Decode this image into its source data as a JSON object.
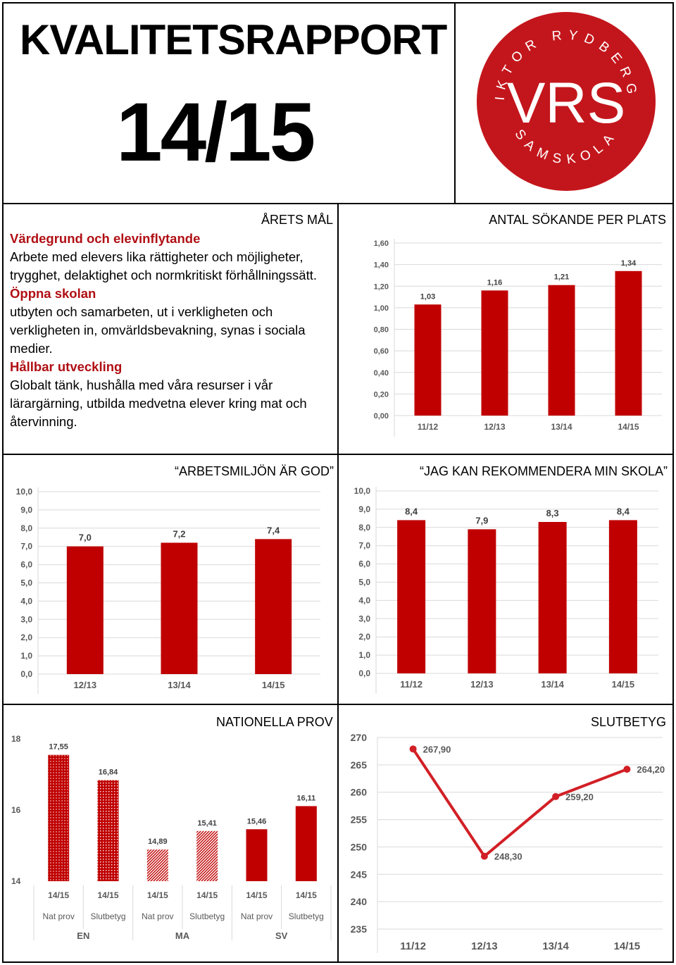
{
  "header": {
    "title": "KVALITETSRAPPORT",
    "year": "14/15",
    "logo": {
      "top_text": "VIKTOR RYDBERGS",
      "bottom_text": "SAMSKOLA",
      "monogram": "VRS",
      "color": "#c3161c"
    }
  },
  "goals": {
    "heading": "ÅRETS MÅL",
    "sections": [
      {
        "title": "Värdegrund och elevinflytande",
        "text": "Arbete med elevers lika rättigheter och möjligheter, trygghet, delaktighet och normkritiskt förhållningssätt."
      },
      {
        "title": "Öppna skolan",
        "text": "utbyten och samarbeten, ut i verkligheten och verkligheten in, omvärldsbevakning, synas i sociala medier."
      },
      {
        "title": "Hållbar utveckling",
        "text": "Globalt tänk, hushålla med våra resurser i vår lärargärning, utbilda medvetna elever kring mat och återvinning."
      }
    ]
  },
  "colors": {
    "bar": "#c00000",
    "grid": "#d9d9d9",
    "axis_text": "#595959"
  },
  "chart_data": [
    {
      "id": "sokande",
      "type": "bar",
      "title": "ANTAL SÖKANDE PER PLATS",
      "categories": [
        "11/12",
        "12/13",
        "13/14",
        "14/15"
      ],
      "values": [
        1.03,
        1.16,
        1.21,
        1.34
      ],
      "value_labels": [
        "1,03",
        "1,16",
        "1,21",
        "1,34"
      ],
      "ylim": [
        0,
        1.6
      ],
      "yticks": [
        "0,00",
        "0,20",
        "0,40",
        "0,60",
        "0,80",
        "1,00",
        "1,20",
        "1,40",
        "1,60"
      ],
      "grid": true
    },
    {
      "id": "arbetsmiljo",
      "type": "bar",
      "title": "“ARBETSMILJÖN ÄR GOD”",
      "categories": [
        "12/13",
        "13/14",
        "14/15"
      ],
      "values": [
        7.0,
        7.2,
        7.4
      ],
      "value_labels": [
        "7,0",
        "7,2",
        "7,4"
      ],
      "ylim": [
        0,
        10
      ],
      "yticks": [
        "0,0",
        "1,0",
        "2,0",
        "3,0",
        "4,0",
        "5,0",
        "6,0",
        "7,0",
        "8,0",
        "9,0",
        "10,0"
      ],
      "grid": true
    },
    {
      "id": "rekommendera",
      "type": "bar",
      "title": "“JAG KAN REKOMMENDERA MIN SKOLA”",
      "categories": [
        "11/12",
        "12/13",
        "13/14",
        "14/15"
      ],
      "values": [
        8.4,
        7.9,
        8.3,
        8.4
      ],
      "value_labels": [
        "8,4",
        "7,9",
        "8,3",
        "8,4"
      ],
      "ylim": [
        0,
        10
      ],
      "yticks": [
        "0,0",
        "1,0",
        "2,0",
        "3,0",
        "4,0",
        "5,0",
        "6,0",
        "7,0",
        "8,0",
        "9,0",
        "10,0"
      ],
      "grid": true
    },
    {
      "id": "nationella",
      "type": "bar",
      "title": "NATIONELLA PROV",
      "groups": [
        "EN",
        "MA",
        "SV"
      ],
      "bars": [
        {
          "group": "EN",
          "year": "14/15",
          "kind": "Nat prov",
          "value": 17.55,
          "label": "17,55",
          "pattern": "dots-dense"
        },
        {
          "group": "EN",
          "year": "14/15",
          "kind": "Slutbetyg",
          "value": 16.84,
          "label": "16,84",
          "pattern": "dots"
        },
        {
          "group": "MA",
          "year": "14/15",
          "kind": "Nat prov",
          "value": 14.89,
          "label": "14,89",
          "pattern": "hatch"
        },
        {
          "group": "MA",
          "year": "14/15",
          "kind": "Slutbetyg",
          "value": 15.41,
          "label": "15,41",
          "pattern": "hatch"
        },
        {
          "group": "SV",
          "year": "14/15",
          "kind": "Nat prov",
          "value": 15.46,
          "label": "15,46",
          "pattern": "solid"
        },
        {
          "group": "SV",
          "year": "14/15",
          "kind": "Slutbetyg",
          "value": 16.11,
          "label": "16,11",
          "pattern": "solid"
        }
      ],
      "ylim": [
        14,
        18
      ],
      "yticks": [
        "14",
        "16",
        "18"
      ],
      "grid": false
    },
    {
      "id": "slutbetyg",
      "type": "line",
      "title": "SLUTBETYG",
      "categories": [
        "11/12",
        "12/13",
        "13/14",
        "14/15"
      ],
      "values": [
        267.9,
        248.3,
        259.2,
        264.2
      ],
      "value_labels": [
        "267,90",
        "248,30",
        "259,20",
        "264,20"
      ],
      "ylim": [
        235,
        270
      ],
      "yticks": [
        "235",
        "240",
        "245",
        "250",
        "255",
        "260",
        "265",
        "270"
      ],
      "grid": true
    }
  ]
}
